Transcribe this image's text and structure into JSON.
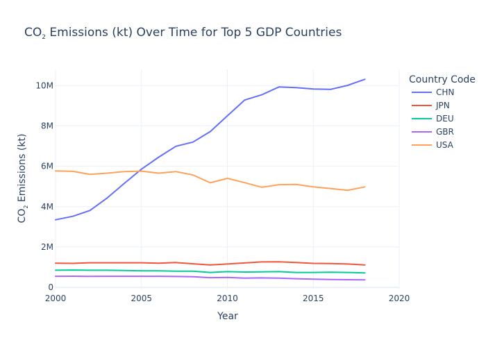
{
  "chart_data": {
    "type": "line",
    "title": "CO₂ Emissions (kt) Over Time for Top 5 GDP Countries",
    "title_main": "CO",
    "title_sub": "2",
    "title_rest": " Emissions (kt) Over Time for Top 5 GDP Countries",
    "xlabel": "Year",
    "ylabel": "CO₂ Emissions (kt)",
    "ylabel_main": "CO",
    "ylabel_sub": "2",
    "ylabel_rest": " Emissions (kt)",
    "xlim": [
      2000,
      2020
    ],
    "ylim": [
      -100000,
      10800000
    ],
    "x_ticks": [
      2000,
      2005,
      2010,
      2015,
      2020
    ],
    "x_tick_labels": [
      "2000",
      "2005",
      "2010",
      "2015",
      "2020"
    ],
    "y_ticks": [
      0,
      2000000,
      4000000,
      6000000,
      8000000,
      10000000
    ],
    "y_tick_labels": [
      "0",
      "2M",
      "4M",
      "6M",
      "8M",
      "10M"
    ],
    "grid": true,
    "legend_title": "Country Code",
    "legend_position": "top-right",
    "x": [
      2000,
      2001,
      2002,
      2003,
      2004,
      2005,
      2006,
      2007,
      2008,
      2009,
      2010,
      2011,
      2012,
      2013,
      2014,
      2015,
      2016,
      2017,
      2018
    ],
    "series": [
      {
        "name": "CHN",
        "color": "#636efa",
        "values": [
          3350000,
          3520000,
          3810000,
          4430000,
          5150000,
          5860000,
          6450000,
          6990000,
          7200000,
          7720000,
          8500000,
          9280000,
          9540000,
          9930000,
          9900000,
          9830000,
          9810000,
          10010000,
          10310000
        ]
      },
      {
        "name": "JPN",
        "color": "#ef553b",
        "values": [
          1200000,
          1190000,
          1220000,
          1220000,
          1220000,
          1220000,
          1200000,
          1230000,
          1170000,
          1110000,
          1160000,
          1210000,
          1260000,
          1270000,
          1230000,
          1190000,
          1180000,
          1160000,
          1110000
        ]
      },
      {
        "name": "DEU",
        "color": "#00cc96",
        "values": [
          850000,
          860000,
          850000,
          850000,
          840000,
          820000,
          820000,
          800000,
          800000,
          740000,
          780000,
          760000,
          770000,
          780000,
          740000,
          740000,
          750000,
          740000,
          720000
        ]
      },
      {
        "name": "GBR",
        "color": "#ab63fa",
        "values": [
          550000,
          555000,
          545000,
          550000,
          550000,
          550000,
          550000,
          540000,
          530000,
          480000,
          495000,
          460000,
          470000,
          460000,
          430000,
          410000,
          390000,
          380000,
          370000
        ]
      },
      {
        "name": "USA",
        "color": "#ffa15a",
        "values": [
          5770000,
          5750000,
          5600000,
          5660000,
          5740000,
          5760000,
          5660000,
          5740000,
          5570000,
          5180000,
          5400000,
          5190000,
          4960000,
          5090000,
          5100000,
          4980000,
          4900000,
          4810000,
          4980000
        ]
      }
    ]
  }
}
